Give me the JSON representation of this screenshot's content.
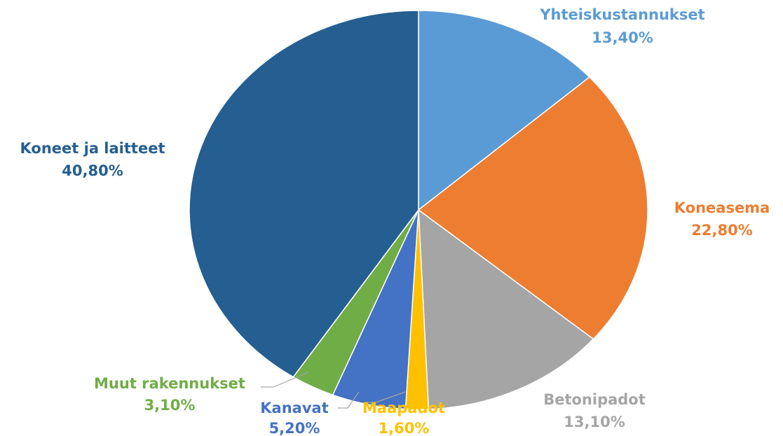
{
  "chart_data": {
    "type": "pie",
    "categories": [
      "Yhteiskustannukset",
      "Koneasema",
      "Betonipadot",
      "Maapadot",
      "Kanavat",
      "Muut rakennukset",
      "Koneet ja laitteet"
    ],
    "values": [
      13.4,
      22.8,
      13.1,
      1.6,
      5.2,
      3.1,
      40.8
    ],
    "value_labels": [
      "13,40%",
      "22,80%",
      "13,10%",
      "1,60%",
      "5,20%",
      "3,10%",
      "40,80%"
    ],
    "colors": [
      "#5b9bd5",
      "#ed7d31",
      "#a5a5a5",
      "#ffc000",
      "#4472c4",
      "#70ad47",
      "#255e91"
    ]
  }
}
